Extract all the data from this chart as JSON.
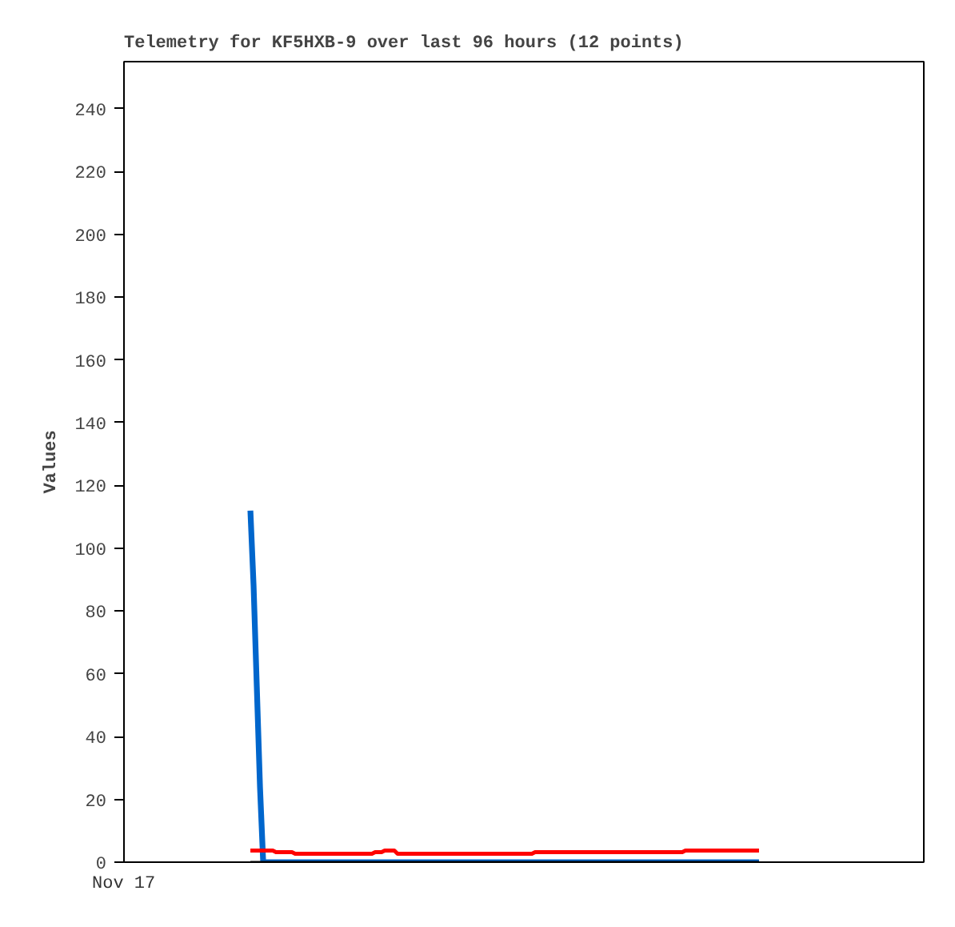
{
  "chart_data": {
    "type": "line",
    "title": "Telemetry for KF5HXB-9 over last 96 hours (12 points)",
    "ylabel": "Values",
    "annotations": [
      "Nov 17"
    ],
    "tick_labels": "y",
    "ylim": [
      0,
      255
    ],
    "yticks": [
      0,
      20,
      40,
      60,
      80,
      100,
      120,
      140,
      160,
      180,
      200,
      220,
      240
    ],
    "categories": [
      null,
      null,
      null,
      null,
      null,
      null,
      null,
      null,
      null,
      null,
      null,
      null,
      null,
      null,
      null,
      null,
      null,
      null,
      null,
      null,
      null,
      null,
      null,
      null,
      null,
      null,
      null,
      null,
      null,
      null,
      null,
      null,
      null,
      null,
      null,
      null,
      null,
      null,
      null,
      null,
      null,
      null,
      null,
      null,
      null,
      null,
      null,
      null,
      null,
      null,
      null,
      null,
      null,
      null,
      null,
      null,
      null,
      null,
      null,
      null,
      null,
      null,
      null,
      null,
      null,
      null,
      null,
      null,
      null,
      null,
      null,
      null,
      null,
      null,
      null,
      null,
      null,
      null,
      null,
      null,
      null,
      null,
      null,
      null,
      null,
      null,
      null,
      null,
      null,
      null,
      null,
      null,
      null,
      null,
      null,
      null,
      null,
      null,
      null,
      null,
      null,
      null,
      null,
      null,
      null,
      null,
      null,
      null,
      null,
      null,
      null,
      null,
      null,
      null,
      null,
      null,
      null,
      null,
      null,
      null,
      null,
      null,
      null,
      null,
      null,
      null,
      null,
      null,
      null,
      null,
      null,
      null,
      null,
      null,
      null,
      null,
      null,
      null,
      null,
      null,
      null,
      null,
      null,
      null,
      null,
      null,
      null,
      null,
      null,
      null,
      null,
      null,
      null,
      null,
      null,
      null,
      null,
      null,
      null,
      null
    ],
    "series": [
      {
        "color": "#0066cc",
        "values": [
          112,
          88,
          56,
          24,
          0,
          0,
          0,
          0,
          0,
          0,
          0,
          0,
          0,
          0,
          0,
          0,
          0,
          0,
          0,
          0,
          0,
          0,
          0,
          0,
          0,
          0,
          0,
          0,
          0,
          0,
          0,
          0,
          0,
          0,
          0,
          0,
          0,
          0,
          0,
          0,
          0,
          0,
          0,
          0,
          0,
          0,
          0,
          0,
          0,
          0,
          0,
          0,
          0,
          0,
          0,
          0,
          0,
          0,
          0,
          0,
          0,
          0,
          0,
          0,
          0,
          0,
          0,
          0,
          0,
          0,
          0,
          0,
          0,
          0,
          0,
          0,
          0,
          0,
          0,
          0,
          0,
          0,
          0,
          0,
          0,
          0,
          0,
          0,
          0,
          0,
          0,
          0,
          0,
          0,
          0,
          0,
          0,
          0,
          0,
          0,
          0,
          0,
          0,
          0,
          0,
          0,
          0,
          0,
          0,
          0,
          0,
          0,
          0,
          0,
          0,
          0,
          0,
          0,
          0,
          0,
          0,
          0,
          0,
          0,
          0,
          0,
          0,
          0,
          0,
          0,
          0,
          0,
          0,
          0,
          0,
          0,
          0,
          0,
          0,
          0,
          0,
          0,
          0,
          0,
          0,
          0,
          0,
          0,
          0,
          0,
          0,
          0,
          0,
          0,
          0,
          0,
          0,
          0,
          0,
          0
        ]
      },
      {
        "color": "#ff0000",
        "values": [
          3.7,
          3.7,
          3.7,
          3.7,
          3.7,
          3.7,
          3.7,
          3.7,
          3.2,
          3.2,
          3.2,
          3.2,
          3.2,
          3.2,
          2.7,
          2.7,
          2.7,
          2.7,
          2.7,
          2.7,
          2.7,
          2.7,
          2.7,
          2.7,
          2.7,
          2.7,
          2.7,
          2.7,
          2.7,
          2.7,
          2.7,
          2.7,
          2.7,
          2.7,
          2.7,
          2.7,
          2.7,
          2.7,
          2.7,
          3.2,
          3.2,
          3.2,
          3.7,
          3.7,
          3.7,
          3.7,
          2.7,
          2.7,
          2.7,
          2.7,
          2.7,
          2.7,
          2.7,
          2.7,
          2.7,
          2.7,
          2.7,
          2.7,
          2.7,
          2.7,
          2.7,
          2.7,
          2.7,
          2.7,
          2.7,
          2.7,
          2.7,
          2.7,
          2.7,
          2.7,
          2.7,
          2.7,
          2.7,
          2.7,
          2.7,
          2.7,
          2.7,
          2.7,
          2.7,
          2.7,
          2.7,
          2.7,
          2.7,
          2.7,
          2.7,
          2.7,
          2.7,
          2.7,
          2.7,
          3.2,
          3.2,
          3.2,
          3.2,
          3.2,
          3.2,
          3.2,
          3.2,
          3.2,
          3.2,
          3.2,
          3.2,
          3.2,
          3.2,
          3.2,
          3.2,
          3.2,
          3.2,
          3.2,
          3.2,
          3.2,
          3.2,
          3.2,
          3.2,
          3.2,
          3.2,
          3.2,
          3.2,
          3.2,
          3.2,
          3.2,
          3.2,
          3.2,
          3.2,
          3.2,
          3.2,
          3.2,
          3.2,
          3.2,
          3.2,
          3.2,
          3.2,
          3.2,
          3.2,
          3.2,
          3.2,
          3.2,
          3.7,
          3.7,
          3.7,
          3.7,
          3.7,
          3.7,
          3.7,
          3.7,
          3.7,
          3.7,
          3.7,
          3.7,
          3.7,
          3.7,
          3.7,
          3.7,
          3.7,
          3.7,
          3.7,
          3.7,
          3.7,
          3.7,
          3.7,
          3.7
        ]
      },
      {
        "color": "#000000",
        "values": [
          0,
          0,
          0,
          0,
          0,
          0,
          0,
          0,
          0,
          0,
          0,
          0,
          0,
          0,
          0,
          0,
          0,
          0,
          0,
          0,
          0,
          0,
          0,
          0,
          0,
          0,
          0,
          0,
          0,
          0,
          0,
          0,
          0,
          0,
          0,
          0,
          0,
          0,
          0,
          0,
          0,
          0,
          0,
          0,
          0,
          0,
          0,
          0,
          0,
          0,
          0,
          0,
          0,
          0,
          0,
          0,
          0,
          0,
          0,
          0,
          0,
          0,
          0,
          0,
          0,
          0,
          0,
          0,
          0,
          0,
          0,
          0,
          0,
          0,
          0,
          0,
          0,
          0,
          0,
          0,
          0,
          0,
          0,
          0,
          0,
          0,
          0,
          0,
          0,
          0,
          0,
          0,
          0,
          0,
          0,
          0,
          0,
          0,
          0,
          0,
          0,
          0,
          0,
          0,
          0,
          0,
          0,
          0,
          0,
          0,
          0,
          0,
          0,
          0,
          0,
          0,
          0,
          0,
          0,
          0,
          0,
          0,
          0,
          0,
          0,
          0,
          0,
          0,
          0,
          0,
          0,
          0,
          0,
          0,
          0,
          0,
          0,
          0,
          0,
          0,
          0,
          0,
          0,
          0,
          0,
          0,
          0,
          0,
          0,
          0,
          0,
          0,
          0,
          0,
          0,
          0,
          0,
          0,
          0,
          0
        ]
      }
    ]
  }
}
